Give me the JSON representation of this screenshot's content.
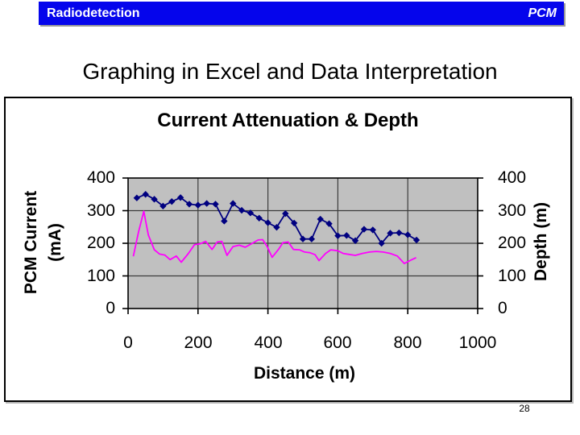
{
  "header": {
    "left": "Radiodetection",
    "right": "PCM",
    "bg_color": "#0505ec",
    "text_color": "#ffffff"
  },
  "slide": {
    "title": "Graphing in Excel and Data Interpretation",
    "page_number": "28"
  },
  "chart_data": {
    "type": "line",
    "title": "Current Attenuation & Depth",
    "xlabel": "Distance (m)",
    "ylabel_left_lines": [
      "PCM Current",
      "(mA)"
    ],
    "ylabel_right": "Depth (m)",
    "xlim": [
      0,
      1000
    ],
    "ylim": [
      0,
      400
    ],
    "x_ticks": [
      "0",
      "200",
      "400",
      "600",
      "800",
      "1000"
    ],
    "y_ticks_left": [
      "400",
      "300",
      "200",
      "100",
      "0"
    ],
    "y_ticks_right": [
      "400",
      "300",
      "200",
      "100",
      "0"
    ],
    "grid": true,
    "legend_position": "none",
    "plot_bg_color": "#c0c0c0",
    "grid_color": "#3c3c3c",
    "series": [
      {
        "name": "PCM Current (mA)",
        "axis": "left",
        "color": "#000080",
        "marker": "diamond",
        "x": [
          25,
          50,
          75,
          100,
          125,
          150,
          175,
          200,
          225,
          250,
          275,
          300,
          325,
          350,
          375,
          400,
          425,
          450,
          475,
          500,
          525,
          550,
          575,
          600,
          625,
          650,
          675,
          700,
          725,
          750,
          775,
          800,
          825
        ],
        "y": [
          339,
          350,
          335,
          314,
          328,
          340,
          320,
          317,
          322,
          320,
          268,
          322,
          301,
          293,
          277,
          263,
          249,
          291,
          262,
          213,
          213,
          274,
          260,
          223,
          224,
          208,
          243,
          241,
          200,
          231,
          232,
          226,
          210
        ]
      },
      {
        "name": "Depth (m)",
        "axis": "right",
        "color": "#ff00ff",
        "marker": "none",
        "x": [
          15,
          30,
          45,
          58,
          75,
          90,
          105,
          120,
          138,
          152,
          172,
          190,
          205,
          222,
          240,
          255,
          268,
          283,
          300,
          318,
          335,
          352,
          372,
          385,
          398,
          412,
          430,
          443,
          458,
          473,
          490,
          505,
          520,
          535,
          546,
          565,
          580,
          600,
          615,
          632,
          650,
          670,
          690,
          710,
          730,
          750,
          770,
          790,
          808,
          824
        ],
        "y": [
          160,
          235,
          298,
          225,
          180,
          167,
          164,
          150,
          161,
          142,
          168,
          196,
          198,
          206,
          181,
          204,
          206,
          163,
          190,
          194,
          188,
          198,
          210,
          211,
          190,
          157,
          181,
          202,
          204,
          181,
          180,
          173,
          171,
          165,
          147,
          169,
          180,
          177,
          169,
          166,
          163,
          169,
          173,
          175,
          173,
          169,
          161,
          138,
          148,
          156
        ]
      }
    ]
  }
}
